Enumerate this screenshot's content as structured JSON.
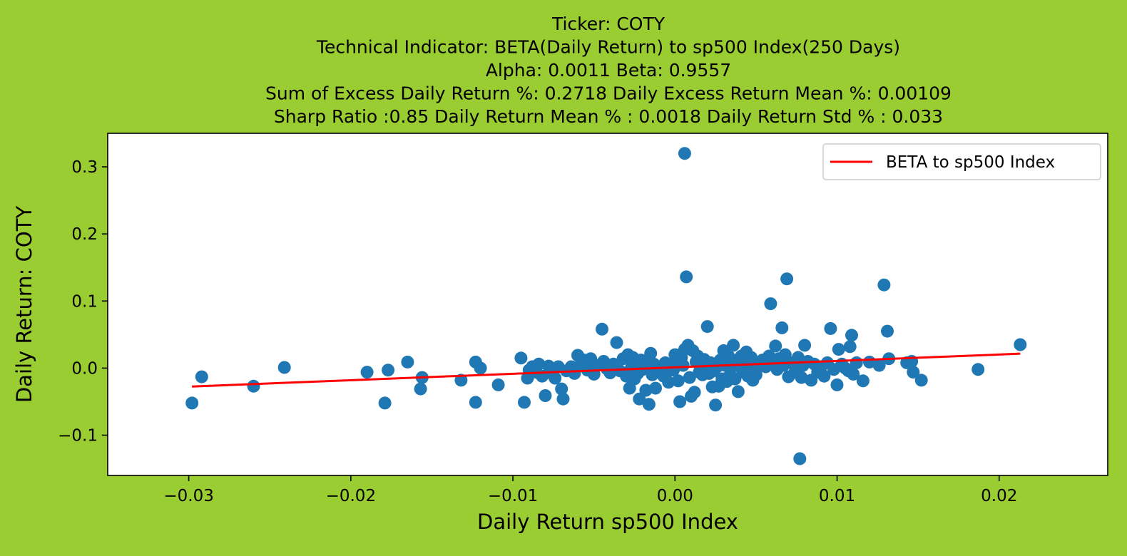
{
  "chart_data": {
    "type": "scatter",
    "title_lines": [
      "Ticker: COTY",
      "Technical Indicator: BETA(Daily Return) to sp500 Index(250 Days)",
      "Alpha: 0.0011   Beta: 0.9557",
      "Sum of Excess Daily Return %: 0.2718   Daily Excess Return Mean %: 0.00109",
      "Sharp Ratio :0.85    Daily Return Mean % : 0.0018    Daily Return Std % : 0.033"
    ],
    "xlabel": "Daily Return sp500 Index",
    "ylabel": "Daily Return: COTY",
    "xlim": [
      -0.035,
      0.0267
    ],
    "ylim": [
      -0.16,
      0.35
    ],
    "xticks": [
      -0.03,
      -0.02,
      -0.01,
      0.0,
      0.01,
      0.02
    ],
    "xtick_labels": [
      "−0.03",
      "−0.02",
      "−0.01",
      "0.00",
      "0.01",
      "0.02"
    ],
    "yticks": [
      -0.1,
      0.0,
      0.1,
      0.2,
      0.3
    ],
    "ytick_labels": [
      "−0.1",
      "0.0",
      "0.1",
      "0.2",
      "0.3"
    ],
    "grid": false,
    "legend": {
      "position": "top-right",
      "entries": [
        "BETA to sp500 Index"
      ]
    },
    "colors": {
      "points": "#1f77b4",
      "line": "#ff0000",
      "background": "#9acd32",
      "plot_area": "#ffffff"
    },
    "series": [
      {
        "type": "scatter",
        "points": [
          [
            -0.0298,
            -0.052
          ],
          [
            -0.0292,
            -0.013
          ],
          [
            -0.026,
            -0.027
          ],
          [
            -0.0241,
            0.001
          ],
          [
            -0.019,
            -0.006
          ],
          [
            -0.0179,
            -0.052
          ],
          [
            -0.0177,
            -0.003
          ],
          [
            -0.0165,
            0.009
          ],
          [
            -0.0157,
            -0.031
          ],
          [
            -0.0156,
            -0.014
          ],
          [
            -0.0132,
            -0.018
          ],
          [
            -0.0123,
            0.009
          ],
          [
            -0.0123,
            -0.051
          ],
          [
            -0.012,
            0.0
          ],
          [
            -0.0109,
            -0.025
          ],
          [
            -0.0095,
            0.015
          ],
          [
            -0.0093,
            -0.051
          ],
          [
            -0.0091,
            -0.015
          ],
          [
            -0.009,
            -0.003
          ],
          [
            -0.0088,
            0.002
          ],
          [
            -0.0086,
            -0.006
          ],
          [
            -0.0084,
            0.006
          ],
          [
            -0.0082,
            -0.012
          ],
          [
            -0.008,
            -0.041
          ],
          [
            -0.0078,
            0.003
          ],
          [
            -0.0076,
            -0.008
          ],
          [
            -0.0074,
            -0.015
          ],
          [
            -0.0072,
            0.002
          ],
          [
            -0.007,
            -0.031
          ],
          [
            -0.0069,
            -0.046
          ],
          [
            -0.0067,
            -0.004
          ],
          [
            -0.0064,
            0.002
          ],
          [
            -0.0062,
            -0.008
          ],
          [
            -0.006,
            0.019
          ],
          [
            -0.0058,
            0.006
          ],
          [
            -0.0056,
            0.012
          ],
          [
            -0.0054,
            -0.003
          ],
          [
            -0.0052,
            0.014
          ],
          [
            -0.005,
            -0.009
          ],
          [
            -0.0048,
            0.004
          ],
          [
            -0.0045,
            0.058
          ],
          [
            -0.0044,
            0.01
          ],
          [
            -0.0042,
            -0.001
          ],
          [
            -0.004,
            -0.007
          ],
          [
            -0.0038,
            0.006
          ],
          [
            -0.0036,
            0.038
          ],
          [
            -0.0034,
            -0.004
          ],
          [
            -0.0032,
            0.014
          ],
          [
            -0.003,
            -0.012
          ],
          [
            -0.0029,
            0.02
          ],
          [
            -0.0028,
            -0.03
          ],
          [
            -0.0027,
            0.0
          ],
          [
            -0.0026,
            0.016
          ],
          [
            -0.0025,
            -0.016
          ],
          [
            -0.0024,
            0.006
          ],
          [
            -0.0023,
            -0.008
          ],
          [
            -0.0022,
            -0.046
          ],
          [
            -0.0021,
            0.012
          ],
          [
            -0.002,
            -0.002
          ],
          [
            -0.0019,
            0.01
          ],
          [
            -0.0018,
            -0.033
          ],
          [
            -0.0017,
            0.004
          ],
          [
            -0.0016,
            -0.054
          ],
          [
            -0.0015,
            0.022
          ],
          [
            -0.0014,
            -0.01
          ],
          [
            -0.0013,
            0.006
          ],
          [
            -0.0012,
            -0.03
          ],
          [
            -0.001,
            -0.002
          ],
          [
            -0.0009,
            0.002
          ],
          [
            -0.0007,
            -0.012
          ],
          [
            -0.0006,
            0.008
          ],
          [
            -0.0005,
            -0.006
          ],
          [
            -0.0004,
            -0.021
          ],
          [
            -0.0002,
            0.006
          ],
          [
            -0.0001,
            -0.003
          ],
          [
            0.0,
            0.02
          ],
          [
            0.0001,
            0.012
          ],
          [
            0.0002,
            -0.019
          ],
          [
            0.0003,
            -0.05
          ],
          [
            0.0004,
            0.016
          ],
          [
            0.0005,
            0.004
          ],
          [
            0.0006,
            0.028
          ],
          [
            0.0006,
            0.32
          ],
          [
            0.0007,
            0.136
          ],
          [
            0.0008,
            0.034
          ],
          [
            0.0009,
            -0.014
          ],
          [
            0.001,
            -0.042
          ],
          [
            0.0011,
            0.026
          ],
          [
            0.0012,
            -0.036
          ],
          [
            0.0013,
            0.009
          ],
          [
            0.0014,
            0.018
          ],
          [
            0.0015,
            -0.006
          ],
          [
            0.0016,
            0.006
          ],
          [
            0.0017,
            -0.01
          ],
          [
            0.0018,
            0.013
          ],
          [
            0.0019,
            0.002
          ],
          [
            0.002,
            0.062
          ],
          [
            0.0021,
            -0.008
          ],
          [
            0.0022,
            0.008
          ],
          [
            0.0023,
            -0.028
          ],
          [
            0.0024,
            -0.004
          ],
          [
            0.0025,
            -0.055
          ],
          [
            0.0026,
            0.002
          ],
          [
            0.0027,
            -0.027
          ],
          [
            0.0028,
            0.012
          ],
          [
            0.0029,
            -0.016
          ],
          [
            0.003,
            0.026
          ],
          [
            0.0031,
            0.004
          ],
          [
            0.0032,
            -0.02
          ],
          [
            0.0033,
            0.018
          ],
          [
            0.0034,
            -0.01
          ],
          [
            0.0035,
            0.006
          ],
          [
            0.0036,
            0.034
          ],
          [
            0.0037,
            -0.016
          ],
          [
            0.0038,
            0.012
          ],
          [
            0.0039,
            -0.035
          ],
          [
            0.004,
            0.002
          ],
          [
            0.0041,
            0.018
          ],
          [
            0.0042,
            -0.006
          ],
          [
            0.0044,
            0.024
          ],
          [
            0.0045,
            -0.012
          ],
          [
            0.0046,
            0.004
          ],
          [
            0.0047,
            0.016
          ],
          [
            0.0048,
            -0.018
          ],
          [
            0.0049,
            0.0
          ],
          [
            0.005,
            -0.01
          ],
          [
            0.0052,
            0.006
          ],
          [
            0.0054,
            0.012
          ],
          [
            0.0056,
            0.002
          ],
          [
            0.0058,
            0.018
          ],
          [
            0.0059,
            0.096
          ],
          [
            0.0061,
            0.006
          ],
          [
            0.0062,
            0.033
          ],
          [
            0.0063,
            -0.002
          ],
          [
            0.0064,
            0.014
          ],
          [
            0.0066,
            0.06
          ],
          [
            0.0067,
            0.004
          ],
          [
            0.0068,
            0.02
          ],
          [
            0.0069,
            0.133
          ],
          [
            0.007,
            -0.013
          ],
          [
            0.0072,
            0.008
          ],
          [
            0.0074,
            -0.006
          ],
          [
            0.0076,
            0.016
          ],
          [
            0.0077,
            -0.135
          ],
          [
            0.0078,
            -0.014
          ],
          [
            0.0079,
            0.004
          ],
          [
            0.008,
            0.034
          ],
          [
            0.0082,
            0.01
          ],
          [
            0.0084,
            -0.018
          ],
          [
            0.0086,
            0.006
          ],
          [
            0.0088,
            -0.006
          ],
          [
            0.009,
            0.002
          ],
          [
            0.0092,
            -0.012
          ],
          [
            0.0094,
            0.008
          ],
          [
            0.0096,
            0.059
          ],
          [
            0.0098,
            -0.002
          ],
          [
            0.01,
            -0.025
          ],
          [
            0.0101,
            0.028
          ],
          [
            0.0103,
            0.006
          ],
          [
            0.0105,
            0.0
          ],
          [
            0.0107,
            -0.004
          ],
          [
            0.0108,
            0.032
          ],
          [
            0.0109,
            0.049
          ],
          [
            0.011,
            -0.009
          ],
          [
            0.0112,
            0.008
          ],
          [
            0.0116,
            -0.019
          ],
          [
            0.012,
            0.009
          ],
          [
            0.0126,
            0.004
          ],
          [
            0.0129,
            0.124
          ],
          [
            0.0131,
            0.055
          ],
          [
            0.0132,
            0.014
          ],
          [
            0.0143,
            0.008
          ],
          [
            0.0146,
            0.01
          ],
          [
            0.0147,
            -0.006
          ],
          [
            0.0152,
            -0.018
          ],
          [
            0.0187,
            -0.002
          ],
          [
            0.0213,
            0.035
          ]
        ]
      },
      {
        "type": "line",
        "name": "BETA to sp500 Index",
        "x": [
          -0.0298,
          0.0213
        ],
        "y": [
          -0.0274,
          0.0215
        ]
      }
    ]
  }
}
